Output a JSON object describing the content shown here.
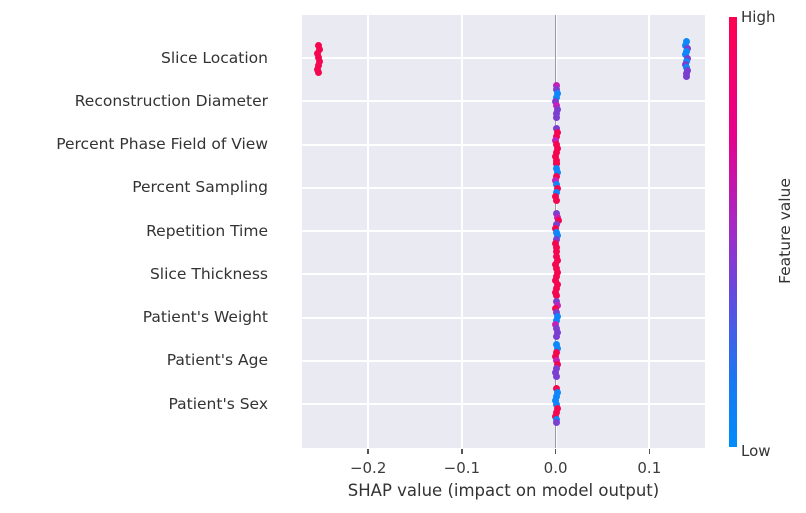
{
  "figure": {
    "xlabel": "SHAP value (impact on model output)",
    "plot_bg": "#eaeaf2",
    "grid_color": "#ffffff",
    "zero_line_color": "#9a9aa2"
  },
  "colorbar": {
    "high_label": "High",
    "low_label": "Low",
    "axis_label": "Feature value",
    "gradient": [
      "#ff0051 0%",
      "#e6008e 28%",
      "#a02cc8 50%",
      "#5a50e2 67%",
      "#1879f2 85%",
      "#008cfb 100%"
    ]
  },
  "chart_data": {
    "type": "scatter",
    "subtype": "shap-beeswarm-summary",
    "title": "",
    "xlabel": "SHAP value (impact on model output)",
    "ylabel": "",
    "xlim": [
      -0.2706,
      0.1594
    ],
    "grid": true,
    "x_ticks": [
      {
        "label": "−0.2",
        "v": -0.2
      },
      {
        "label": "−0.1",
        "v": -0.1
      },
      {
        "label": "0.0",
        "v": 0.0
      },
      {
        "label": "0.1",
        "v": 0.1
      }
    ],
    "colors": {
      "hi": "#f5074f",
      "lo": "#0d87f9",
      "mid": "#7b3fd0",
      "mag": "#c320b9"
    },
    "color_meaning": {
      "hi": "high feature value",
      "lo": "low feature value",
      "mid": "mid feature value",
      "mag": "mid-high feature value"
    },
    "features": [
      {
        "name": "Slice Location",
        "clusters": [
          {
            "v": -0.253,
            "pts": [
              [
                -13,
                "hi",
                0
              ],
              [
                -9,
                "hi",
                1
              ],
              [
                -5,
                "hi",
                -1
              ],
              [
                -1,
                "hi",
                0
              ],
              [
                3,
                "hi",
                1
              ],
              [
                7,
                "hi",
                0
              ],
              [
                11,
                "hi",
                -1
              ],
              [
                14,
                "hi",
                0
              ]
            ]
          },
          {
            "v": 0.14,
            "pts": [
              [
                -17,
                "lo",
                0
              ],
              [
                -13,
                "lo",
                -1
              ],
              [
                -10,
                "mid",
                1
              ],
              [
                -7,
                "lo",
                0
              ],
              [
                -4,
                "lo",
                -1
              ],
              [
                0,
                "mid",
                1
              ],
              [
                3,
                "lo",
                0
              ],
              [
                6,
                "mid",
                -1
              ],
              [
                9,
                "lo",
                0
              ],
              [
                12,
                "mid",
                1
              ],
              [
                15,
                "mid",
                0
              ],
              [
                18,
                "mid",
                0
              ]
            ]
          }
        ]
      },
      {
        "name": "Reconstruction Diameter",
        "clusters": [
          {
            "v": 0.001,
            "pts": [
              [
                -16,
                "mag",
                0
              ],
              [
                -12,
                "mid",
                0
              ],
              [
                -8,
                "lo",
                1
              ],
              [
                -4,
                "lo",
                0
              ],
              [
                0,
                "mid",
                -1
              ],
              [
                4,
                "mag",
                0
              ],
              [
                8,
                "mid",
                1
              ],
              [
                12,
                "mid",
                0
              ],
              [
                16,
                "mid",
                0
              ]
            ]
          }
        ]
      },
      {
        "name": "Percent Phase Field of View",
        "clusters": [
          {
            "v": 0.001,
            "pts": [
              [
                -16,
                "mid",
                0
              ],
              [
                -12,
                "hi",
                1
              ],
              [
                -8,
                "hi",
                0
              ],
              [
                -4,
                "mag",
                -1
              ],
              [
                0,
                "hi",
                0
              ],
              [
                4,
                "hi",
                1
              ],
              [
                8,
                "hi",
                0
              ],
              [
                12,
                "hi",
                -1
              ],
              [
                16,
                "hi",
                0
              ],
              [
                19,
                "hi",
                0
              ]
            ]
          }
        ]
      },
      {
        "name": "Percent Sampling",
        "clusters": [
          {
            "v": 0.001,
            "pts": [
              [
                -24,
                "hi",
                0
              ],
              [
                -19,
                "lo",
                0
              ],
              [
                -15,
                "lo",
                1
              ],
              [
                -11,
                "hi",
                0
              ],
              [
                -7,
                "mag",
                -1
              ],
              [
                -3,
                "lo",
                0
              ],
              [
                1,
                "hi",
                1
              ],
              [
                5,
                "lo",
                0
              ],
              [
                9,
                "hi",
                -1
              ],
              [
                13,
                "hi",
                0
              ]
            ]
          }
        ]
      },
      {
        "name": "Repetition Time",
        "clusters": [
          {
            "v": 0.001,
            "pts": [
              [
                -18,
                "mid",
                0
              ],
              [
                -14,
                "mag",
                1
              ],
              [
                -11,
                "hi",
                2
              ],
              [
                -7,
                "mid",
                0
              ],
              [
                -3,
                "hi",
                -1
              ],
              [
                1,
                "lo",
                0
              ],
              [
                4,
                "lo",
                1
              ],
              [
                8,
                "mid",
                0
              ],
              [
                12,
                "hi",
                -1
              ],
              [
                16,
                "hi",
                0
              ],
              [
                20,
                "hi",
                0
              ]
            ]
          }
        ]
      },
      {
        "name": "Slice Thickness",
        "clusters": [
          {
            "v": 0.001,
            "pts": [
              [
                -18,
                "hi",
                0
              ],
              [
                -14,
                "hi",
                1
              ],
              [
                -10,
                "hi",
                -1
              ],
              [
                -6,
                "hi",
                0
              ],
              [
                -2,
                "hi",
                1
              ],
              [
                2,
                "hi",
                0
              ],
              [
                6,
                "hi",
                -1
              ],
              [
                10,
                "hi",
                1
              ],
              [
                14,
                "hi",
                0
              ],
              [
                18,
                "hi",
                -1
              ],
              [
                21,
                "hi",
                0
              ]
            ]
          }
        ]
      },
      {
        "name": "Patient's Weight",
        "clusters": [
          {
            "v": 0.001,
            "pts": [
              [
                -16,
                "mid",
                0
              ],
              [
                -12,
                "mag",
                1
              ],
              [
                -9,
                "hi",
                -1
              ],
              [
                -5,
                "mid",
                0
              ],
              [
                -1,
                "lo",
                1
              ],
              [
                3,
                "lo",
                0
              ],
              [
                7,
                "mag",
                -1
              ],
              [
                11,
                "mid",
                0
              ],
              [
                15,
                "mid",
                1
              ],
              [
                19,
                "mid",
                0
              ]
            ]
          }
        ]
      },
      {
        "name": "Patient's Age",
        "clusters": [
          {
            "v": 0.001,
            "pts": [
              [
                -16,
                "lo",
                0
              ],
              [
                -12,
                "lo",
                1
              ],
              [
                -8,
                "hi",
                0
              ],
              [
                -4,
                "hi",
                -1
              ],
              [
                0,
                "mag",
                0
              ],
              [
                4,
                "hi",
                1
              ],
              [
                8,
                "mid",
                0
              ],
              [
                12,
                "mid",
                -1
              ],
              [
                16,
                "mid",
                0
              ]
            ]
          }
        ]
      },
      {
        "name": "Patient's Sex",
        "clusters": [
          {
            "v": 0.001,
            "pts": [
              [
                -16,
                "hi",
                0
              ],
              [
                -12,
                "lo",
                1
              ],
              [
                -8,
                "lo",
                0
              ],
              [
                -4,
                "lo",
                -1
              ],
              [
                0,
                "lo",
                0
              ],
              [
                4,
                "hi",
                1
              ],
              [
                8,
                "hi",
                0
              ],
              [
                12,
                "hi",
                -1
              ],
              [
                15,
                "lo",
                0
              ],
              [
                18,
                "mid",
                0
              ]
            ]
          }
        ]
      }
    ]
  }
}
